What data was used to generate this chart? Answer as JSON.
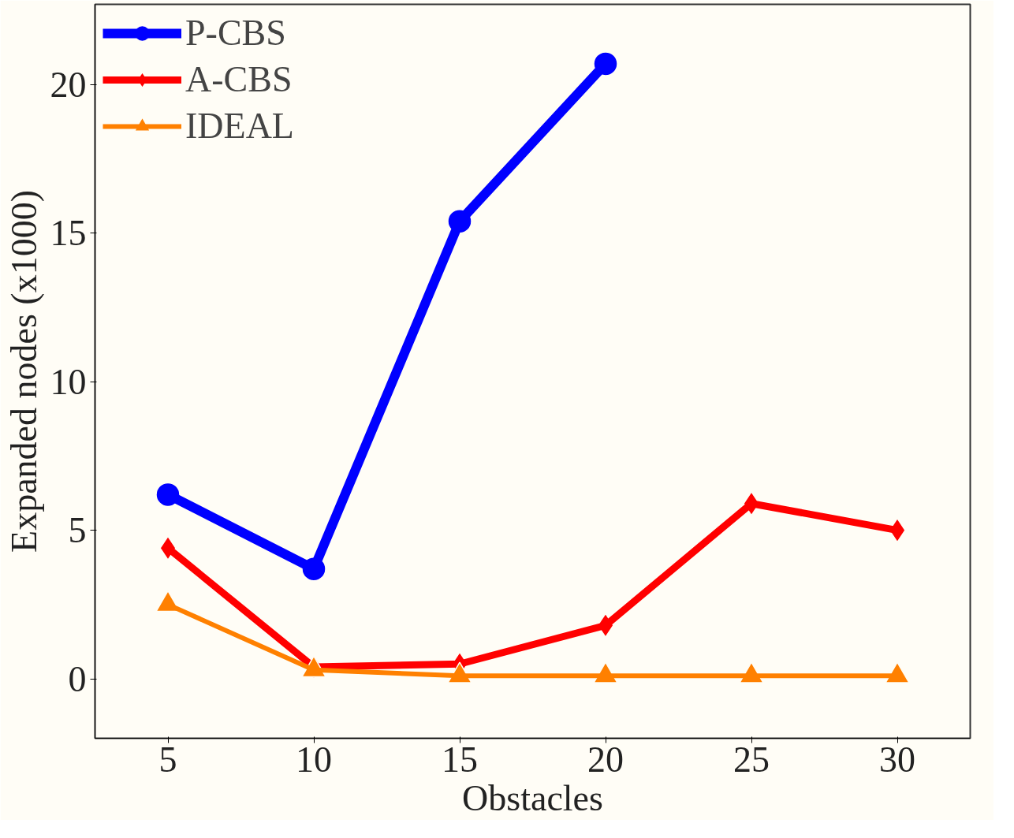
{
  "chart_data": {
    "type": "line",
    "xlabel": "Obstacles",
    "ylabel": "Expanded nodes (x1000)",
    "x": [
      5,
      10,
      15,
      20,
      25,
      30
    ],
    "xlim": [
      2.5,
      32.5
    ],
    "xticks": [
      5,
      10,
      15,
      20,
      25,
      30
    ],
    "ylim": [
      -2,
      22.7
    ],
    "yticks": [
      0,
      5,
      10,
      15,
      20
    ],
    "grid": false,
    "legend": "top left",
    "line_style": "solid",
    "series": [
      {
        "name": "P-CBS",
        "color": "#0000ff",
        "marker": "circle",
        "values": [
          6.2,
          3.7,
          15.4,
          20.7,
          null,
          null
        ]
      },
      {
        "name": "A-CBS",
        "color": "#ff0000",
        "marker": "diamond",
        "values": [
          4.4,
          0.4,
          0.5,
          1.8,
          5.9,
          5.0
        ]
      },
      {
        "name": "IDEAL",
        "color": "#ff8000",
        "marker": "triangle",
        "values": [
          2.5,
          0.3,
          0.1,
          0.1,
          0.1,
          0.1
        ]
      }
    ]
  }
}
